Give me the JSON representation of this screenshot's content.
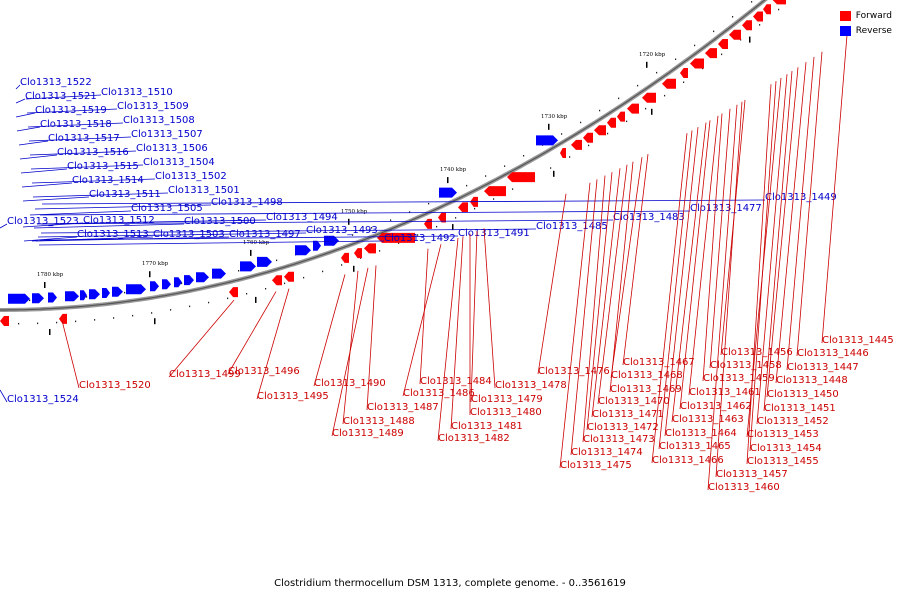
{
  "legend": {
    "forward": {
      "label": "Forward",
      "color": "#ff0000"
    },
    "reverse": {
      "label": "Reverse",
      "color": "#0000ff"
    }
  },
  "caption": "Clostridium thermocellum DSM 1313, complete genome. - 0..3561619",
  "ticks": [
    "1780 kbp",
    "1770 kbp",
    "1760 kbp",
    "1750 kbp",
    "1740 kbp",
    "1730 kbp",
    "1720 kbp",
    "1710 kbp",
    "1700 kbp"
  ],
  "genes_reverse": [
    "Clo1313_1522",
    "Clo1313_1521",
    "Clo1313_1519",
    "Clo1313_1518",
    "Clo1313_1517",
    "Clo1313_1516",
    "Clo1313_1515",
    "Clo1313_1514",
    "Clo1313_1511",
    "Clo1313_1523",
    "Clo1313_1512",
    "Clo1313_1513",
    "Clo1313_1510",
    "Clo1313_1509",
    "Clo1313_1508",
    "Clo1313_1507",
    "Clo1313_1506",
    "Clo1313_1504",
    "Clo1313_1502",
    "Clo1313_1501",
    "Clo1313_1505",
    "Clo1313_1503",
    "Clo1313_1500",
    "Clo1313_1498",
    "Clo1313_1497",
    "Clo1313_1494",
    "Clo1313_1493",
    "Clo1313_1492",
    "Clo1313_1491",
    "Clo1313_1485",
    "Clo1313_1483",
    "Clo1313_1477",
    "Clo1313_1449",
    "Clo1313_1524"
  ],
  "genes_forward": [
    "Clo1313_1520",
    "Clo1313_1499",
    "Clo1313_1496",
    "Clo1313_1495",
    "Clo1313_1490",
    "Clo1313_1488",
    "Clo1313_1489",
    "Clo1313_1487",
    "Clo1313_1484",
    "Clo1313_1486",
    "Clo1313_1478",
    "Clo1313_1479",
    "Clo1313_1480",
    "Clo1313_1481",
    "Clo1313_1482",
    "Clo1313_1476",
    "Clo1313_1467",
    "Clo1313_1468",
    "Clo1313_1469",
    "Clo1313_1470",
    "Clo1313_1471",
    "Clo1313_1472",
    "Clo1313_1473",
    "Clo1313_1474",
    "Clo1313_1475",
    "Clo1313_1456",
    "Clo1313_1458",
    "Clo1313_1459",
    "Clo1313_1461",
    "Clo1313_1462",
    "Clo1313_1463",
    "Clo1313_1464",
    "Clo1313_1465",
    "Clo1313_1466",
    "Clo1313_1457",
    "Clo1313_1460",
    "Clo1313_1445",
    "Clo1313_1446",
    "Clo1313_1447",
    "Clo1313_1448",
    "Clo1313_1450",
    "Clo1313_1451",
    "Clo1313_1452",
    "Clo1313_1453",
    "Clo1313_1454",
    "Clo1313_1455"
  ]
}
